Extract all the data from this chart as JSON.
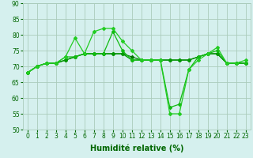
{
  "lines": [
    {
      "x": [
        0,
        1,
        2,
        3,
        4,
        5,
        6,
        7,
        8,
        9,
        10,
        11,
        12,
        13,
        14,
        15,
        16,
        17,
        18,
        19,
        20,
        21,
        22,
        23
      ],
      "y": [
        68,
        70,
        71,
        71,
        73,
        79,
        74,
        81,
        82,
        82,
        78,
        75,
        72,
        72,
        72,
        55,
        55,
        69,
        72,
        74,
        76,
        71,
        71,
        72
      ]
    },
    {
      "x": [
        0,
        1,
        2,
        3,
        4,
        5,
        6,
        7,
        8,
        9,
        10,
        11,
        12,
        13,
        14,
        15,
        16,
        17,
        18,
        19,
        20,
        21,
        22,
        23
      ],
      "y": [
        68,
        70,
        71,
        71,
        73,
        73,
        74,
        74,
        74,
        81,
        75,
        72,
        72,
        72,
        72,
        57,
        58,
        69,
        73,
        74,
        75,
        71,
        71,
        71
      ]
    },
    {
      "x": [
        0,
        1,
        2,
        3,
        4,
        5,
        6,
        7,
        8,
        9,
        10,
        11,
        12,
        13,
        14,
        15,
        16,
        17,
        18,
        19,
        20,
        21,
        22,
        23
      ],
      "y": [
        68,
        70,
        71,
        71,
        72,
        73,
        74,
        74,
        74,
        74,
        74,
        72,
        72,
        72,
        72,
        72,
        72,
        72,
        73,
        74,
        74,
        71,
        71,
        71
      ]
    },
    {
      "x": [
        0,
        1,
        2,
        3,
        4,
        5,
        6,
        7,
        8,
        9,
        10,
        11,
        12,
        13,
        14,
        15,
        16,
        17,
        18,
        19,
        20,
        21,
        22,
        23
      ],
      "y": [
        68,
        70,
        71,
        71,
        72,
        73,
        74,
        74,
        74,
        74,
        74,
        73,
        72,
        72,
        72,
        72,
        72,
        72,
        73,
        74,
        74,
        71,
        71,
        71
      ]
    }
  ],
  "xlabel": "Humidité relative (%)",
  "xlim": [
    -0.5,
    23.5
  ],
  "ylim": [
    50,
    90
  ],
  "yticks": [
    50,
    55,
    60,
    65,
    70,
    75,
    80,
    85,
    90
  ],
  "xticks": [
    0,
    1,
    2,
    3,
    4,
    5,
    6,
    7,
    8,
    9,
    10,
    11,
    12,
    13,
    14,
    15,
    16,
    17,
    18,
    19,
    20,
    21,
    22,
    23
  ],
  "background_color": "#d5f0ee",
  "grid_color": "#aaccbb",
  "line_colors": [
    "#22cc22",
    "#11bb11",
    "#009900",
    "#007700"
  ],
  "xlabel_color": "#006600",
  "tick_color": "#006600",
  "xlabel_fontsize": 7,
  "tick_fontsize": 5.5,
  "markersize": 2.0,
  "linewidth": 0.9
}
